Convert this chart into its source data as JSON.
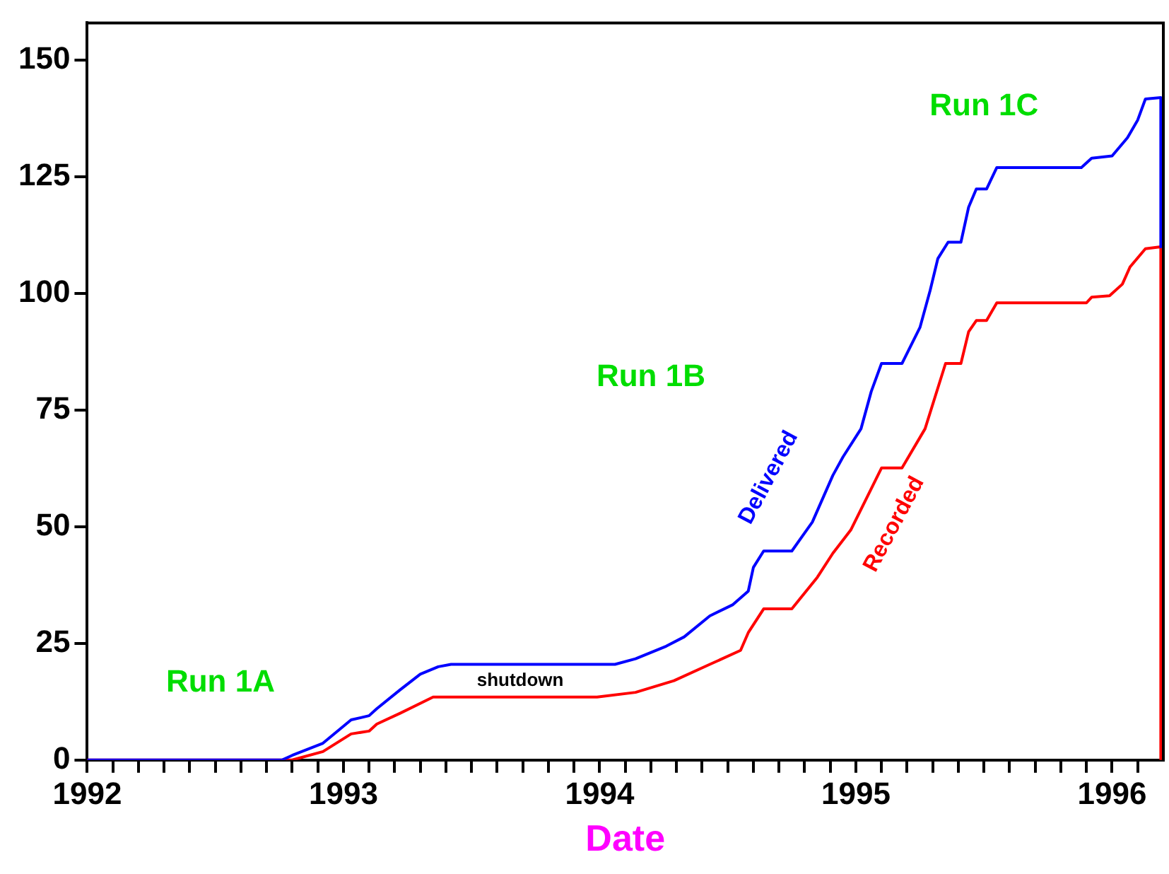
{
  "chart_data": {
    "type": "line",
    "xlabel": "Date",
    "xlim": [
      1992,
      1996.2
    ],
    "xticks": [
      1992,
      {
        "value": 1992.1,
        "label": null
      },
      {
        "value": 1992.2,
        "label": null
      },
      {
        "value": 1992.3,
        "label": null
      },
      {
        "value": 1992.4,
        "label": null
      },
      {
        "value": 1992.5,
        "label": null
      },
      {
        "value": 1992.6,
        "label": null
      },
      {
        "value": 1992.7,
        "label": null
      },
      {
        "value": 1992.8,
        "label": null
      },
      {
        "value": 1992.9,
        "label": null
      },
      1993,
      {
        "value": 1993.1,
        "label": null
      },
      {
        "value": 1993.2,
        "label": null
      },
      {
        "value": 1993.3,
        "label": null
      },
      {
        "value": 1993.4,
        "label": null
      },
      {
        "value": 1993.5,
        "label": null
      },
      {
        "value": 1993.6,
        "label": null
      },
      {
        "value": 1993.7,
        "label": null
      },
      {
        "value": 1993.8,
        "label": null
      },
      {
        "value": 1993.9,
        "label": null
      },
      1994,
      {
        "value": 1994.1,
        "label": null
      },
      {
        "value": 1994.2,
        "label": null
      },
      {
        "value": 1994.3,
        "label": null
      },
      {
        "value": 1994.4,
        "label": null
      },
      {
        "value": 1994.5,
        "label": null
      },
      {
        "value": 1994.6,
        "label": null
      },
      {
        "value": 1994.7,
        "label": null
      },
      {
        "value": 1994.8,
        "label": null
      },
      {
        "value": 1994.9,
        "label": null
      },
      1995,
      {
        "value": 1995.1,
        "label": null
      },
      {
        "value": 1995.2,
        "label": null
      },
      {
        "value": 1995.3,
        "label": null
      },
      {
        "value": 1995.4,
        "label": null
      },
      {
        "value": 1995.5,
        "label": null
      },
      {
        "value": 1995.6,
        "label": null
      },
      {
        "value": 1995.7,
        "label": null
      },
      {
        "value": 1995.8,
        "label": null
      },
      {
        "value": 1995.9,
        "label": null
      },
      1996,
      {
        "value": 1996.1,
        "label": null
      }
    ],
    "ylim": [
      0,
      158
    ],
    "yticks": [
      0,
      25,
      50,
      75,
      100,
      125,
      150
    ],
    "grid": false,
    "legend": false,
    "marker": "none",
    "line_style": "solid",
    "series": [
      {
        "name": "Delivered",
        "color": "#0000ff",
        "x": [
          1992,
          1992.76,
          1992.8,
          1992.92,
          1993.03,
          1993.1,
          1993.13,
          1993.22,
          1993.3,
          1993.37,
          1993.42,
          1994.06,
          1994.14,
          1994.26,
          1994.33,
          1994.43,
          1994.52,
          1994.58,
          1994.6,
          1994.64,
          1994.75,
          1994.83,
          1994.91,
          1994.95,
          1995.02,
          1995.06,
          1995.1,
          1995.18,
          1995.25,
          1995.29,
          1995.32,
          1995.36,
          1995.41,
          1995.44,
          1995.47,
          1995.51,
          1995.55,
          1995.88,
          1995.92,
          1996,
          1996.06,
          1996.1,
          1996.13,
          1996.19,
          1996.19
        ],
        "values": [
          0,
          0,
          1,
          3.6,
          8.6,
          9.5,
          11,
          15,
          18.4,
          20,
          20.5,
          20.5,
          21.7,
          24.4,
          26.4,
          30.9,
          33.3,
          36.2,
          41.3,
          44.8,
          44.8,
          51,
          61,
          65,
          71,
          79,
          85,
          85,
          92.7,
          100.7,
          107.5,
          111,
          111,
          118.5,
          122.4,
          122.4,
          127,
          127,
          129,
          129.5,
          133.4,
          137.2,
          141.7,
          142,
          110
        ]
      },
      {
        "name": "Recorded",
        "color": "#ff0000",
        "x": [
          1992,
          1992.8,
          1992.92,
          1993.03,
          1993.1,
          1993.13,
          1993.22,
          1993.35,
          1993.99,
          1994.14,
          1994.29,
          1994.43,
          1994.55,
          1994.58,
          1994.64,
          1994.75,
          1994.85,
          1994.91,
          1994.98,
          1995.1,
          1995.18,
          1995.27,
          1995.35,
          1995.41,
          1995.44,
          1995.47,
          1995.51,
          1995.55,
          1995.9,
          1995.92,
          1995.99,
          1996.04,
          1996.07,
          1996.13,
          1996.19,
          1996.19
        ],
        "values": [
          0,
          0,
          1.8,
          5.6,
          6.2,
          7.7,
          10,
          13.5,
          13.5,
          14.5,
          17,
          20.5,
          23.5,
          27.3,
          32.4,
          32.4,
          39.2,
          44.3,
          49.3,
          62.6,
          62.6,
          71,
          85,
          85,
          91.8,
          94.2,
          94.2,
          98,
          98,
          99.2,
          99.5,
          102,
          105.7,
          109.6,
          110,
          0
        ]
      }
    ],
    "annotations": [
      "Run 1A",
      "Run 1B",
      "Run 1C",
      "shutdown"
    ]
  }
}
